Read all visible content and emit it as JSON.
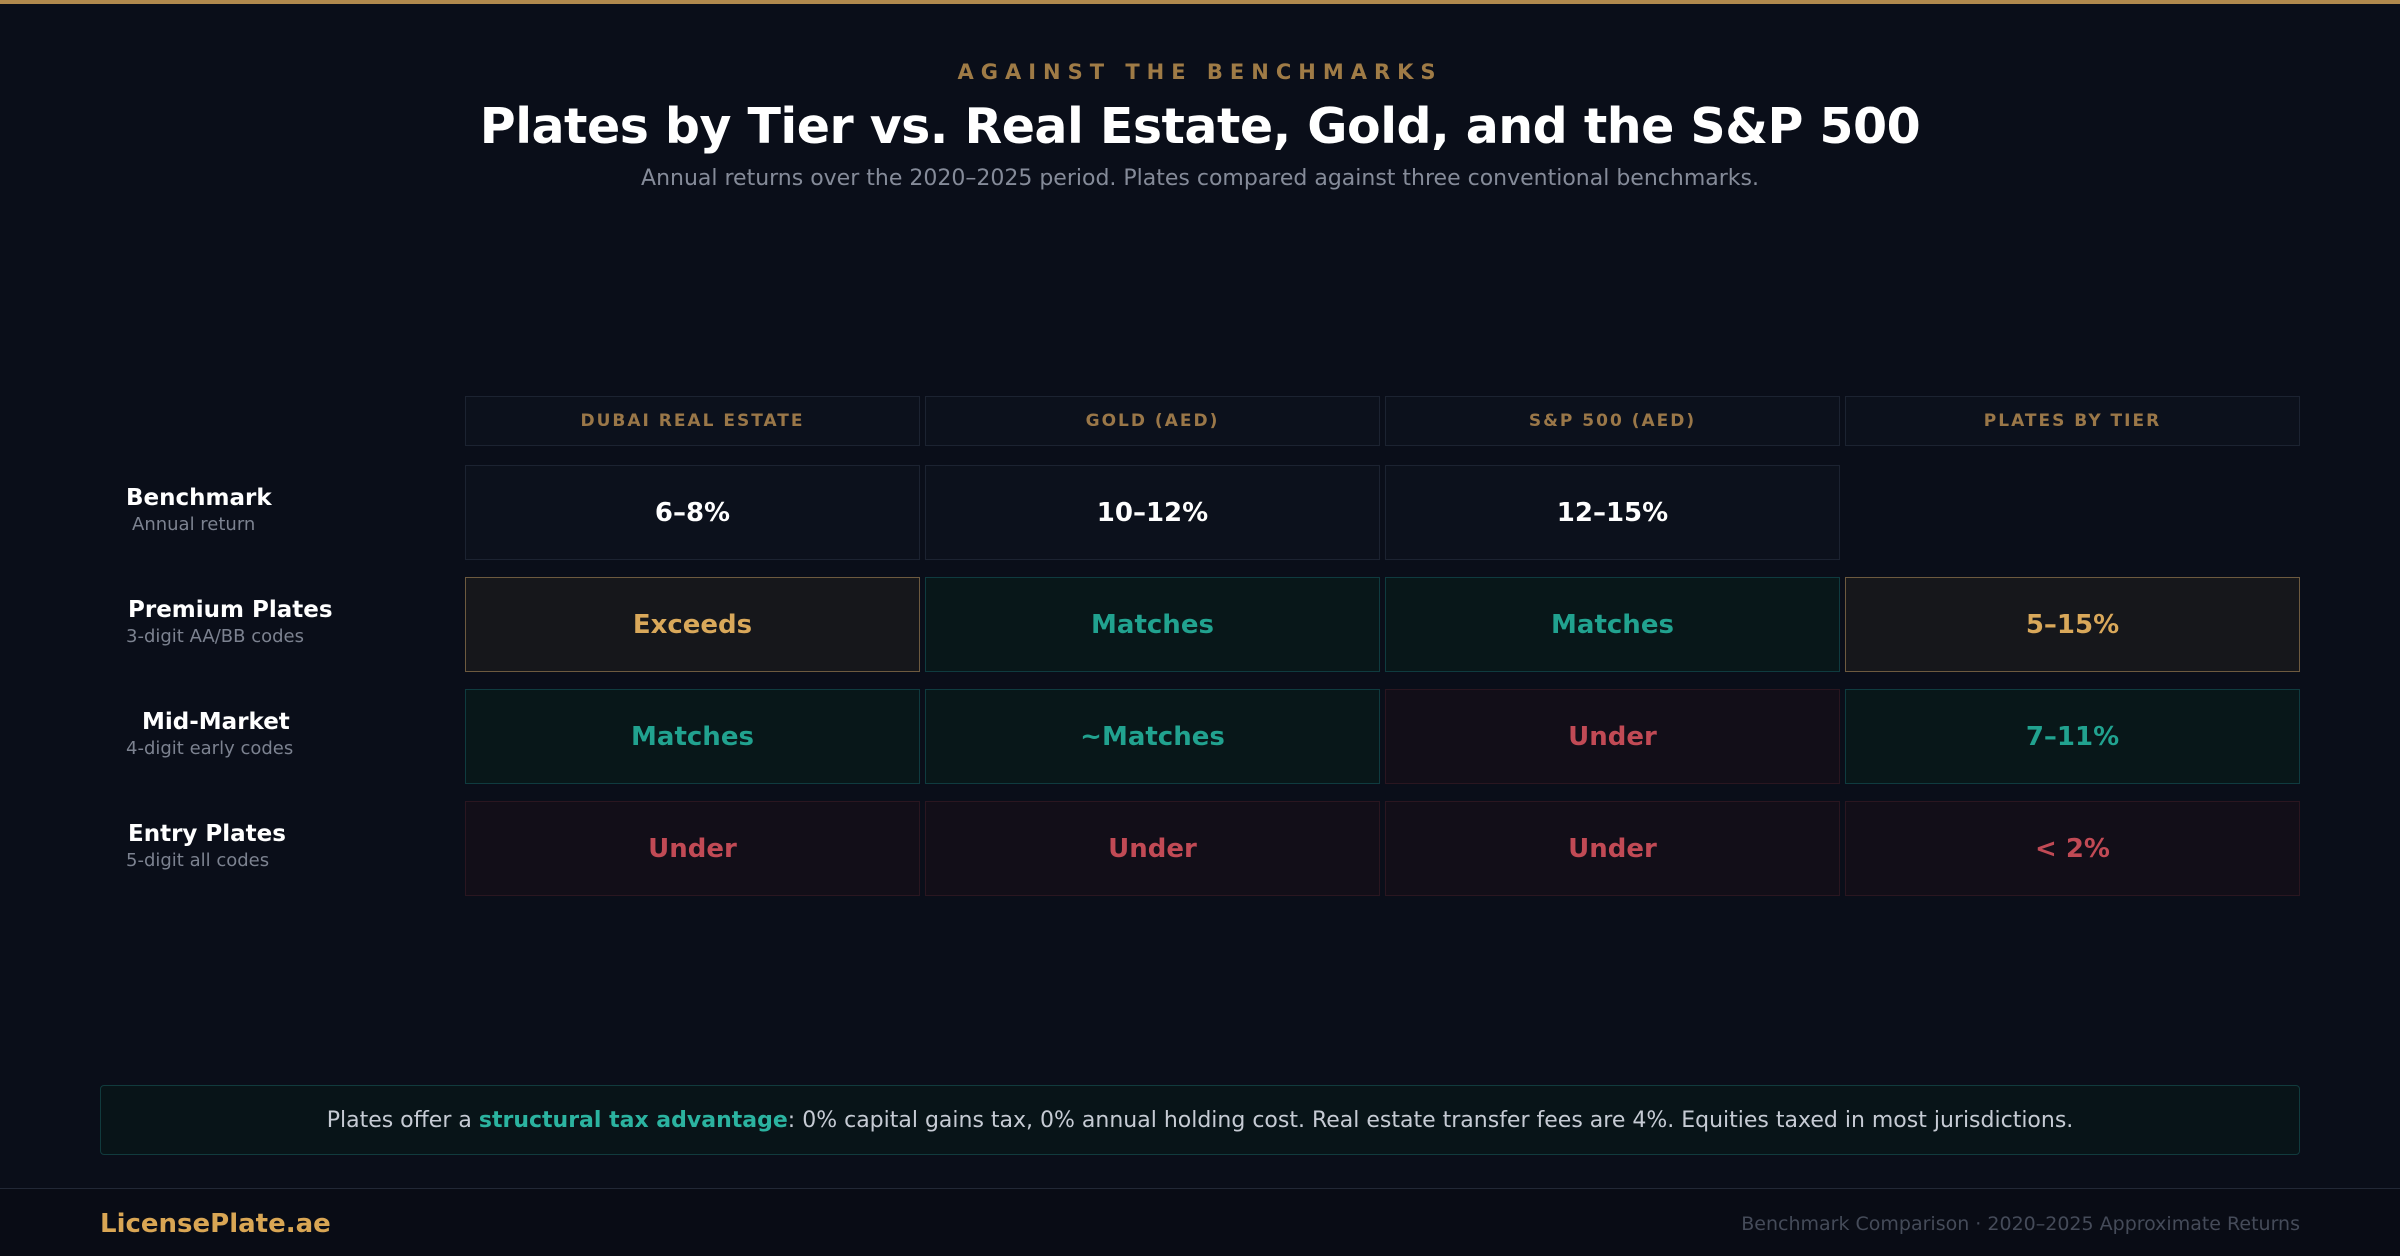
{
  "header": {
    "eyebrow": "AGAINST THE BENCHMARKS",
    "title": "Plates by Tier vs. Real Estate, Gold, and the S&P 500",
    "subtitle": "Annual returns over the 2020–2025 period. Plates compared against three conventional benchmarks."
  },
  "table": {
    "columns": [
      "DUBAI REAL ESTATE",
      "GOLD (AED)",
      "S&P 500 (AED)",
      "PLATES BY TIER"
    ],
    "rows": [
      {
        "label": "Benchmark",
        "sub": "Annual return",
        "cells": [
          "6–8%",
          "10–12%",
          "12–15%",
          ""
        ]
      },
      {
        "label": "Premium Plates",
        "sub": "3-digit AA/BB codes",
        "cells": [
          "Exceeds",
          "Matches",
          "Matches",
          "5–15%"
        ]
      },
      {
        "label": "Mid-Market",
        "sub": "4-digit early codes",
        "cells": [
          "Matches",
          "~Matches",
          "Under",
          "7–11%"
        ]
      },
      {
        "label": "Entry Plates",
        "sub": "5-digit all codes",
        "cells": [
          "Under",
          "Under",
          "Under",
          "< 2%"
        ]
      }
    ]
  },
  "note": {
    "prefix": "Plates offer a ",
    "highlight": "structural tax advantage",
    "suffix": ": 0% capital gains tax, 0% annual holding cost. Real estate transfer fees are 4%. Equities taxed in most jurisdictions."
  },
  "footer": {
    "brand": "LicensePlate.ae",
    "caption": "Benchmark Comparison · 2020–2025 Approximate Returns"
  },
  "colors": {
    "accent_gold": "#d9a654",
    "positive_teal": "#21a28f",
    "negative_red": "#c14a55",
    "background": "#0a0e19"
  }
}
